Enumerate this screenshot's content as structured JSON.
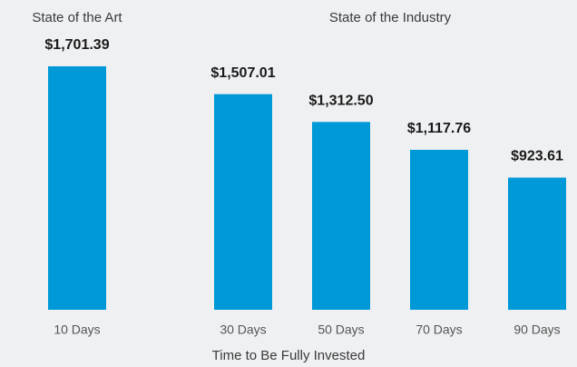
{
  "chart_data": {
    "type": "bar",
    "group_labels": [
      "State of the Art",
      "State of the Industry"
    ],
    "xlabel": "Time to Be Fully Invested",
    "categories": [
      "10 Days",
      "30 Days",
      "50 Days",
      "70 Days",
      "90 Days"
    ],
    "values": [
      1701.39,
      1507.01,
      1312.5,
      1117.76,
      923.61
    ],
    "value_labels": [
      "$1,701.39",
      "$1,507.01",
      "$1,312.50",
      "$1,117.76",
      "$923.61"
    ],
    "color": "#0099d8"
  }
}
